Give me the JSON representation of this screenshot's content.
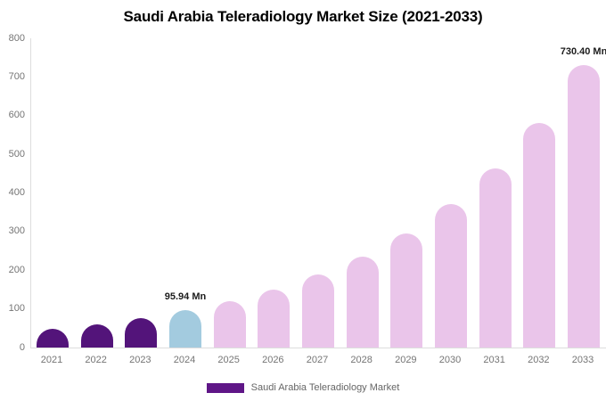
{
  "title": "Saudi Arabia Teleradiology Market Size (2021-2033)",
  "legend": {
    "label": "Saudi Arabia Teleradiology Market",
    "swatch_color": "#5f1687"
  },
  "colors": {
    "historical_bar": "#53147a",
    "base_year_bar": "#a3cbdf",
    "forecast_bar": "#eac5ea",
    "axis_line": "#dddddd",
    "tick_text": "#757575",
    "annotation_text": "#1c1c1c",
    "title_text": "#000000",
    "background": "#ffffff"
  },
  "chart_data": {
    "type": "bar",
    "title": "Saudi Arabia Teleradiology Market Size (2021-2033)",
    "unit": "Mn",
    "categories": [
      "2021",
      "2022",
      "2023",
      "2024",
      "2025",
      "2026",
      "2027",
      "2028",
      "2029",
      "2030",
      "2031",
      "2032",
      "2033"
    ],
    "series": [
      {
        "name": "Saudi Arabia Teleradiology Market",
        "values": [
          48.8,
          61.1,
          76.6,
          95.94,
          120.2,
          150.6,
          188.6,
          236.3,
          296.0,
          370.9,
          464.6,
          582.1,
          730.4
        ]
      }
    ],
    "bar_colors": [
      "#53147a",
      "#53147a",
      "#53147a",
      "#a3cbdf",
      "#eac5ea",
      "#eac5ea",
      "#eac5ea",
      "#eac5ea",
      "#eac5ea",
      "#eac5ea",
      "#eac5ea",
      "#eac5ea",
      "#eac5ea"
    ],
    "data_labels": [
      {
        "category": "2024",
        "text": "95.94 Mn"
      },
      {
        "category": "2033",
        "text": "730.40 Mn"
      }
    ],
    "xlabel": "",
    "ylabel": "",
    "ylim": [
      0,
      800
    ],
    "yticks": [
      0,
      100,
      200,
      300,
      400,
      500,
      600,
      700,
      800
    ],
    "grid": false,
    "legend_position": "bottom"
  }
}
